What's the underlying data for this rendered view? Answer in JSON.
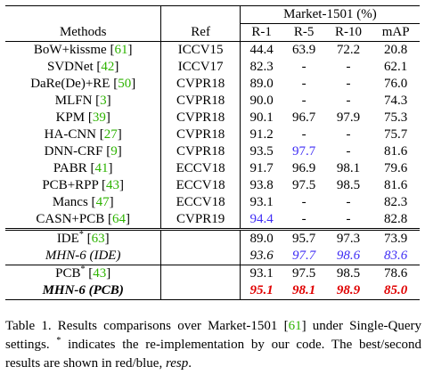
{
  "header": {
    "dataset": "Market-1501 (%)",
    "columns": [
      "Methods",
      "Ref",
      "R-1",
      "R-5",
      "R-10",
      "mAP"
    ]
  },
  "rows": [
    {
      "method": "BoW+kissme [",
      "cite": "61",
      "ref": "ICCV15",
      "r1": "44.4",
      "r5": "63.9",
      "r10": "72.2",
      "map": "20.8"
    },
    {
      "method": "SVDNet [",
      "cite": "42",
      "ref": "ICCV17",
      "r1": "82.3",
      "r5": "-",
      "r10": "-",
      "map": "62.1"
    },
    {
      "method": "DaRe(De)+RE [",
      "cite": "50",
      "ref": "CVPR18",
      "r1": "89.0",
      "r5": "-",
      "r10": "-",
      "map": "76.0"
    },
    {
      "method": "MLFN [",
      "cite": "3",
      "ref": "CVPR18",
      "r1": "90.0",
      "r5": "-",
      "r10": "-",
      "map": "74.3"
    },
    {
      "method": "KPM [",
      "cite": "39",
      "ref": "CVPR18",
      "r1": "90.1",
      "r5": "96.7",
      "r10": "97.9",
      "map": "75.3"
    },
    {
      "method": "HA-CNN [",
      "cite": "27",
      "ref": "CVPR18",
      "r1": "91.2",
      "r5": "-",
      "r10": "-",
      "map": "75.7"
    },
    {
      "method": "DNN-CRF [",
      "cite": "9",
      "ref": "CVPR18",
      "r1": "93.5",
      "r5": "97.7",
      "r10": "-",
      "map": "81.6"
    },
    {
      "method": "PABR [",
      "cite": "41",
      "ref": "ECCV18",
      "r1": "91.7",
      "r5": "96.9",
      "r10": "98.1",
      "map": "79.6"
    },
    {
      "method": "PCB+RPP [",
      "cite": "43",
      "ref": "ECCV18",
      "r1": "93.8",
      "r5": "97.5",
      "r10": "98.5",
      "map": "81.6"
    },
    {
      "method": "Mancs [",
      "cite": "47",
      "ref": "ECCV18",
      "r1": "93.1",
      "r5": "-",
      "r10": "-",
      "map": "82.3"
    },
    {
      "method": "CASN+PCB [",
      "cite": "64",
      "ref": "CVPR19",
      "r1": "94.4",
      "r5": "-",
      "r10": "-",
      "map": "82.8"
    }
  ],
  "ide_group": {
    "ide": {
      "method": "IDE",
      "cite": "63",
      "r1": "89.0",
      "r5": "95.7",
      "r10": "97.3",
      "map": "73.9"
    },
    "mhn_ide": {
      "method": "MHN-6 (IDE)",
      "r1": "93.6",
      "r5": "97.7",
      "r10": "98.6",
      "map": "83.6"
    }
  },
  "pcb_group": {
    "pcb": {
      "method": "PCB",
      "cite": "43",
      "r1": "93.1",
      "r5": "97.5",
      "r10": "98.5",
      "map": "78.6"
    },
    "mhn_pcb": {
      "method": "MHN-6 (PCB)",
      "r1": "95.1",
      "r5": "98.1",
      "r10": "98.9",
      "map": "85.0"
    }
  },
  "caption": {
    "part1": "Table 1. Results comparisons over Market-1501 [",
    "cite": "61",
    "part2": "] under Single-Query settings.",
    "star": "*",
    "part3": " indicates the re-implementation by our code. The best/second results are shown in red/blue, ",
    "resp": "resp",
    "end": "."
  },
  "colors": {
    "cite": "#2db300",
    "best": "#e00000",
    "second": "#3f2df5"
  }
}
